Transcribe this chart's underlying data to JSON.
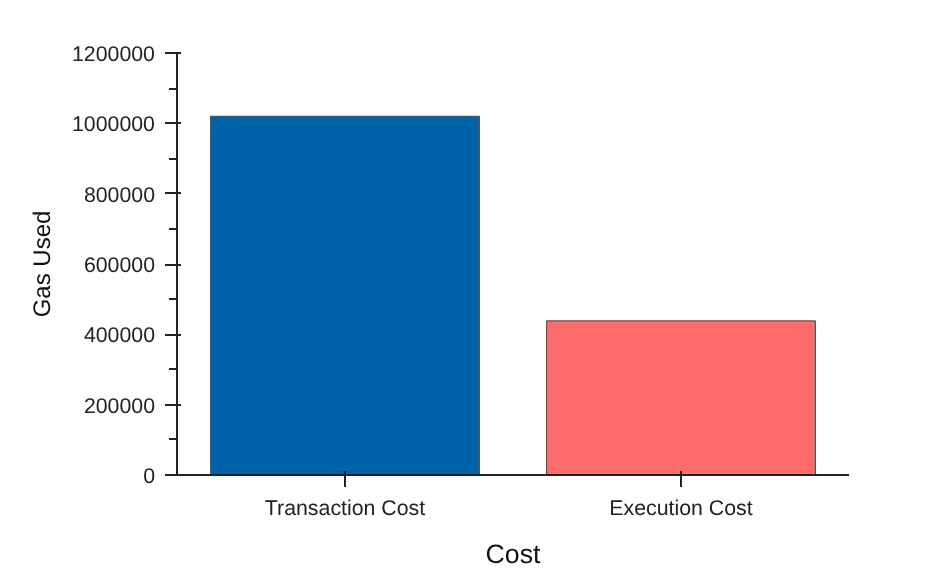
{
  "chart_data": {
    "type": "bar",
    "xlabel": "Cost",
    "ylabel": "Gas Used",
    "categories": [
      "Transaction Cost",
      "Execution Cost"
    ],
    "values": [
      1020000,
      438000
    ],
    "colors": [
      "#0063a9",
      "#fd6c6c"
    ],
    "ylim": [
      0,
      1200000
    ],
    "yticks": [
      0,
      200000,
      400000,
      600000,
      800000,
      1000000,
      1200000
    ],
    "grid": false
  }
}
